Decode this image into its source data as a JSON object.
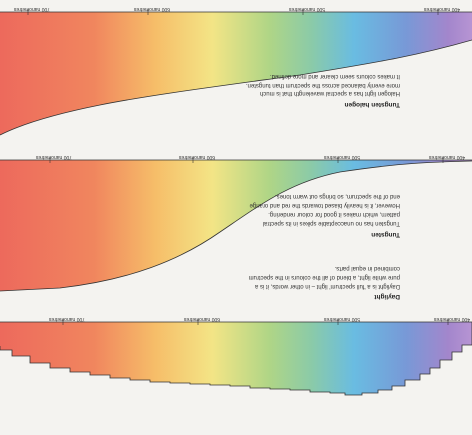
{
  "panels": [
    {
      "title": "Tungsten halogen",
      "body": [
        "Halogen light has a spectral wavelength that is much",
        "more evenly balanced across the spectrum than tungsten.",
        "It makes colours seem clearer and more defined."
      ],
      "axis_labels": [
        "700 nanometres",
        "600 nanometres",
        "500 nanometres",
        "400 nanometres"
      ]
    },
    {
      "title": "Tungsten",
      "body": [
        "Tungsten has no unacceptable spikes in its spectral",
        "pattern, which makes it good for colour rendering.",
        "However, it is heavily biased towards the red and orange",
        "end of the spectrum, so brings out warm tones."
      ],
      "axis_labels": [
        "700 nanometres",
        "600 nanometres",
        "500 nanometres",
        "400 nanometres"
      ]
    },
    {
      "title": "Daylight",
      "body": [
        "Daylight is a 'full spectrum' light – in other words, it is a",
        "pure white light, a blend of all the colours in the spectrum",
        "combined in equal parts."
      ],
      "axis_labels": [
        "700 nanometres",
        "600 nanometres",
        "500 nanometres",
        "400 nanometres"
      ]
    }
  ]
}
